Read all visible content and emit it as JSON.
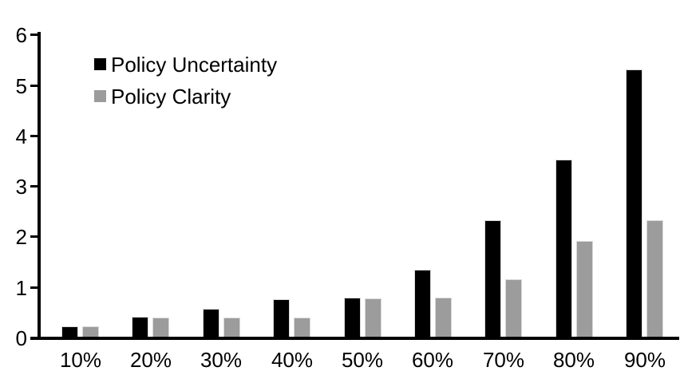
{
  "chart_data": {
    "type": "bar",
    "title": "",
    "categories": [
      "10%",
      "20%",
      "30%",
      "40%",
      "50%",
      "60%",
      "70%",
      "80%",
      "90%"
    ],
    "series": [
      {
        "name": "Policy Uncertainty",
        "color": "#000000",
        "values": [
          0.2,
          0.4,
          0.56,
          0.75,
          0.77,
          1.33,
          2.3,
          3.5,
          5.3
        ]
      },
      {
        "name": "Policy Clarity",
        "color": "#9c9c9c",
        "values": [
          0.2,
          0.38,
          0.38,
          0.38,
          0.76,
          0.77,
          1.14,
          1.9,
          2.3
        ]
      }
    ],
    "xlabel": "",
    "ylabel": "",
    "ylim": [
      0,
      6
    ],
    "yticks": [
      0,
      1,
      2,
      3,
      4,
      5,
      6
    ],
    "grid": false,
    "legend_position": "top-left",
    "axis_color": "#000000",
    "bar_border_color": "#d9d9d9"
  }
}
